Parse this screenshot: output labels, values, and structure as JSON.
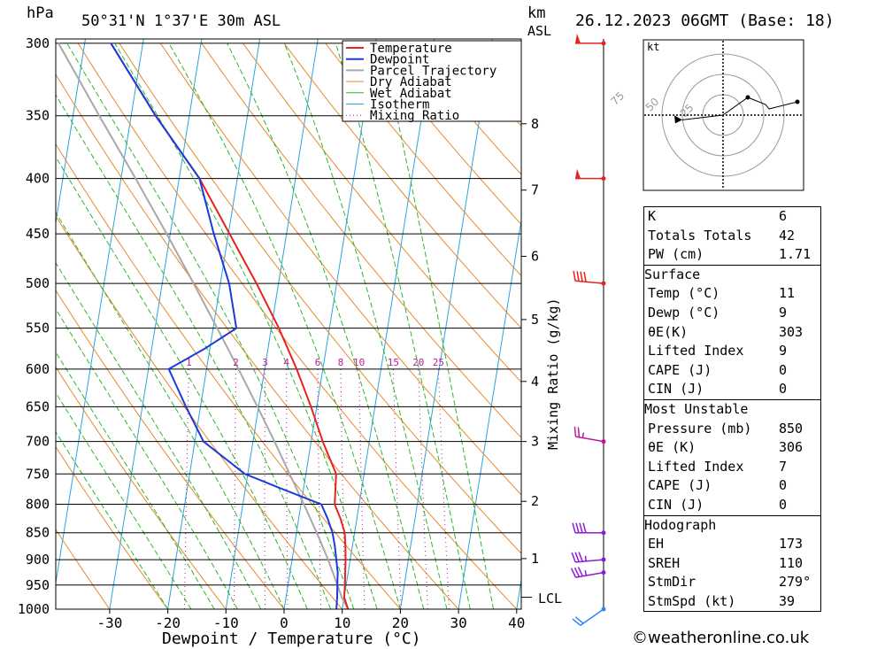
{
  "header": {
    "pressure_unit": "hPa",
    "location": "50°31'N 1°37'E 30m ASL",
    "height_unit": "km",
    "height_unit_ref": "ASL",
    "datetime": "26.12.2023 06GMT (Base: 18)"
  },
  "chart_data": {
    "type": "line",
    "title": "50°31'N 1°37'E 30m ASL",
    "xlabel": "Dewpoint / Temperature (°C)",
    "ylabel": "hPa",
    "xlim": [
      -40,
      40
    ],
    "ylim": [
      1000,
      300
    ],
    "pressure_ticks": [
      300,
      350,
      400,
      450,
      500,
      550,
      600,
      650,
      700,
      750,
      800,
      850,
      900,
      950,
      1000
    ],
    "temp_ticks": [
      -30,
      -20,
      -10,
      0,
      10,
      20,
      30,
      40
    ],
    "km_ticks": [
      {
        "km": "1",
        "p": 898
      },
      {
        "km": "2",
        "p": 795
      },
      {
        "km": "3",
        "p": 700
      },
      {
        "km": "4",
        "p": 616
      },
      {
        "km": "5",
        "p": 540
      },
      {
        "km": "6",
        "p": 472
      },
      {
        "km": "7",
        "p": 410
      },
      {
        "km": "8",
        "p": 356
      }
    ],
    "lcl_label": "LCL",
    "lcl_p": 975,
    "mixing_ratio_axis_label": "Mixing Ratio (g/kg)",
    "mixing_ratio_values": [
      1,
      2,
      3,
      4,
      6,
      8,
      10,
      15,
      20,
      25
    ],
    "legend": [
      "Temperature",
      "Dewpoint",
      "Parcel Trajectory",
      "Dry Adiabat",
      "Wet Adiabat",
      "Isotherm",
      "Mixing Ratio"
    ],
    "series": [
      {
        "name": "Temperature",
        "color": "#e8221f",
        "points": [
          [
            1000,
            11
          ],
          [
            975,
            10
          ],
          [
            950,
            9.8
          ],
          [
            925,
            9.5
          ],
          [
            900,
            9.2
          ],
          [
            875,
            8.8
          ],
          [
            850,
            8.3
          ],
          [
            825,
            7.2
          ],
          [
            800,
            5.8
          ],
          [
            775,
            5.5
          ],
          [
            750,
            5.2
          ],
          [
            700,
            2.0
          ],
          [
            650,
            -1.0
          ],
          [
            600,
            -4.5
          ],
          [
            550,
            -8.7
          ],
          [
            500,
            -13.8
          ],
          [
            450,
            -19.8
          ],
          [
            400,
            -26.5
          ],
          [
            350,
            -35.8
          ],
          [
            300,
            -45.5
          ]
        ]
      },
      {
        "name": "Dewpoint",
        "color": "#1a3adb",
        "points": [
          [
            1000,
            9
          ],
          [
            975,
            8.8
          ],
          [
            950,
            8.5
          ],
          [
            925,
            8.2
          ],
          [
            900,
            7.6
          ],
          [
            875,
            7.0
          ],
          [
            850,
            6.2
          ],
          [
            825,
            5.0
          ],
          [
            800,
            3.5
          ],
          [
            775,
            -3.5
          ],
          [
            750,
            -10.5
          ],
          [
            700,
            -18.5
          ],
          [
            650,
            -22.5
          ],
          [
            600,
            -26.5
          ],
          [
            575,
            -21.0
          ],
          [
            550,
            -16.0
          ],
          [
            500,
            -18.5
          ],
          [
            450,
            -22.5
          ],
          [
            400,
            -26.5
          ],
          [
            350,
            -35.8
          ],
          [
            300,
            -45.5
          ]
        ]
      },
      {
        "name": "Parcel Trajectory",
        "color": "#a8a8a8",
        "points": [
          [
            1000,
            11
          ],
          [
            975,
            9.6
          ],
          [
            950,
            8.5
          ],
          [
            900,
            6.2
          ],
          [
            850,
            3.5
          ],
          [
            800,
            0.5
          ],
          [
            750,
            -2.8
          ],
          [
            700,
            -6.3
          ],
          [
            650,
            -10.2
          ],
          [
            600,
            -14.5
          ],
          [
            550,
            -19.3
          ],
          [
            500,
            -24.6
          ],
          [
            450,
            -30.6
          ],
          [
            400,
            -37.5
          ],
          [
            350,
            -45.5
          ],
          [
            300,
            -54.5
          ]
        ]
      }
    ]
  },
  "wind_profile": [
    {
      "p": 300,
      "dir": 270,
      "kt": 50,
      "color": "#e8221f"
    },
    {
      "p": 400,
      "dir": 270,
      "kt": 50,
      "color": "#e8221f"
    },
    {
      "p": 500,
      "dir": 275,
      "kt": 40,
      "color": "#e8221f"
    },
    {
      "p": 700,
      "dir": 280,
      "kt": 25,
      "color": "#c0199c"
    },
    {
      "p": 850,
      "dir": 270,
      "kt": 40,
      "color": "#8f1ad9"
    },
    {
      "p": 900,
      "dir": 265,
      "kt": 35,
      "color": "#8f1ad9"
    },
    {
      "p": 925,
      "dir": 260,
      "kt": 35,
      "color": "#8f1ad9"
    },
    {
      "p": 1000,
      "dir": 235,
      "kt": 20,
      "color": "#2f86f0"
    }
  ],
  "hodograph": {
    "unit": "kt",
    "rings": [
      "25",
      "50",
      "75"
    ],
    "trace": [
      [
        0,
        0
      ],
      [
        15,
        -3
      ],
      [
        25,
        -5
      ],
      [
        38,
        -8
      ],
      [
        45,
        -5
      ],
      [
        52,
        -3
      ],
      [
        62,
        -2
      ],
      [
        -5,
        12
      ],
      [
        5,
        12
      ]
    ],
    "storm_motion": {
      "dir": 279,
      "kt": 39
    }
  },
  "indices": {
    "top": [
      {
        "label": "K",
        "value": "6"
      },
      {
        "label": "Totals Totals",
        "value": "42"
      },
      {
        "label": "PW (cm)",
        "value": "1.71"
      }
    ],
    "surface": {
      "title": "Surface",
      "rows": [
        {
          "label": "Temp (°C)",
          "value": "11"
        },
        {
          "label": "Dewp (°C)",
          "value": "9"
        },
        {
          "label": "θE(K)",
          "value": "303"
        },
        {
          "label": "Lifted Index",
          "value": "9"
        },
        {
          "label": "CAPE (J)",
          "value": "0"
        },
        {
          "label": "CIN (J)",
          "value": "0"
        }
      ]
    },
    "most_unstable": {
      "title": "Most Unstable",
      "rows": [
        {
          "label": "Pressure (mb)",
          "value": "850"
        },
        {
          "label": "θE (K)",
          "value": "306"
        },
        {
          "label": "Lifted Index",
          "value": "7"
        },
        {
          "label": "CAPE (J)",
          "value": "0"
        },
        {
          "label": "CIN (J)",
          "value": "0"
        }
      ]
    },
    "hodograph_box": {
      "title": "Hodograph",
      "rows": [
        {
          "label": "EH",
          "value": "173"
        },
        {
          "label": "SREH",
          "value": "110"
        },
        {
          "label": "StmDir",
          "value": "279°"
        },
        {
          "label": "StmSpd (kt)",
          "value": "39"
        }
      ]
    }
  },
  "footer": {
    "copyright": "©weatheronline.co.uk"
  },
  "colors": {
    "temperature": "#e8221f",
    "dewpoint": "#1a3adb",
    "parcel": "#a8a8a8",
    "dry_adiabat": "#e8892a",
    "wet_adiabat": "#2ab82a",
    "isotherm": "#2aa3e0",
    "mixing_ratio": "#c0199c"
  }
}
